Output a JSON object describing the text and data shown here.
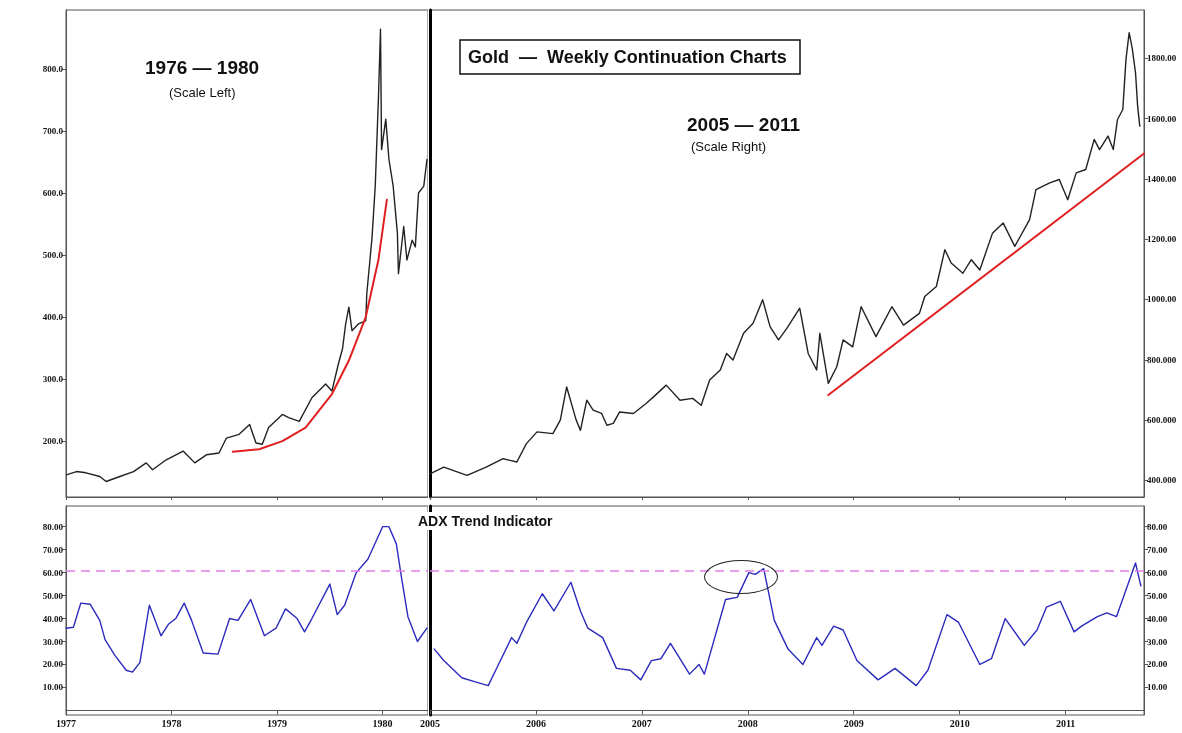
{
  "chart_data": [
    {
      "type": "line",
      "annotations": [
        "1976 — 1980",
        "(Scale Left)"
      ],
      "xlim": [
        1977,
        1980.43
      ],
      "xticks": [
        1977,
        1978,
        1979,
        1980
      ],
      "ylim": [
        110,
        895
      ],
      "yticks": [
        {
          "value": 200,
          "label": "200.0"
        },
        {
          "value": 300,
          "label": "300.0"
        },
        {
          "value": 400,
          "label": "400.0"
        },
        {
          "value": 500,
          "label": "500.0"
        },
        {
          "value": 600,
          "label": "600.0"
        },
        {
          "value": 700,
          "label": "700.0"
        },
        {
          "value": 800,
          "label": "800.0"
        }
      ],
      "tick_labels": "y",
      "marker": "none",
      "series": [
        {
          "color": "#222222",
          "x": [
            1977.01,
            1977.1,
            1977.19,
            1977.32,
            1977.38,
            1977.51,
            1977.64,
            1977.76,
            1977.82,
            1977.95,
            1978.11,
            1978.22,
            1978.33,
            1978.45,
            1978.52,
            1978.64,
            1978.74,
            1978.8,
            1978.86,
            1978.92,
            1979.05,
            1979.11,
            1979.21,
            1979.33,
            1979.46,
            1979.52,
            1979.58,
            1979.62,
            1979.65,
            1979.68,
            1979.71,
            1979.77,
            1979.84,
            1979.85,
            1979.88,
            1979.9,
            1979.93,
            1979.96,
            1979.98,
            1979.99,
            1980.03,
            1980.06,
            1980.1,
            1980.14,
            1980.15,
            1980.2,
            1980.23,
            1980.28,
            1980.31,
            1980.34,
            1980.39,
            1980.42
          ],
          "values": [
            146,
            151,
            149,
            143,
            135,
            143,
            151,
            165,
            154,
            170,
            184,
            165,
            178,
            181,
            205,
            211,
            227,
            197,
            195,
            222,
            243,
            238,
            232,
            270,
            292,
            281,
            324,
            349,
            389,
            416,
            378,
            389,
            394,
            438,
            492,
            529,
            611,
            751,
            864,
            670,
            719,
            654,
            611,
            535,
            470,
            546,
            492,
            524,
            513,
            600,
            611,
            654
          ]
        },
        {
          "type": "line",
          "color": "#e02020",
          "x": [
            1978.58,
            1978.83,
            1979.05,
            1979.27,
            1979.52,
            1979.68,
            1979.84,
            1979.96,
            1980.04
          ],
          "values": [
            183,
            187,
            200,
            222,
            276,
            330,
            400,
            492,
            589
          ]
        }
      ]
    },
    {
      "type": "line",
      "title": "Gold  —  Weekly Continuation Charts",
      "annotations": [
        "2005 — 2011",
        "(Scale Right)"
      ],
      "xlim": [
        2005,
        2011.74
      ],
      "xticks": [
        2005,
        2006,
        2007,
        2008,
        2009,
        2010,
        2011
      ],
      "ylim": [
        345,
        1960
      ],
      "yticks": [
        {
          "value": 400,
          "label": "400.000"
        },
        {
          "value": 600,
          "label": "600.000"
        },
        {
          "value": 800,
          "label": "800.000"
        },
        {
          "value": 1000,
          "label": "1000.00"
        },
        {
          "value": 1200,
          "label": "1200.00"
        },
        {
          "value": 1400,
          "label": "1400.00"
        },
        {
          "value": 1600,
          "label": "1600.00"
        },
        {
          "value": 1800,
          "label": "1800.00"
        }
      ],
      "tick_labels": "y",
      "marker": "none",
      "series": [
        {
          "color": "#222222",
          "x": [
            2005,
            2005.13,
            2005.35,
            2005.53,
            2005.69,
            2005.82,
            2005.91,
            2006.01,
            2006.16,
            2006.23,
            2006.29,
            2006.38,
            2006.42,
            2006.48,
            2006.54,
            2006.62,
            2006.67,
            2006.73,
            2006.79,
            2006.92,
            2007.04,
            2007.11,
            2007.23,
            2007.36,
            2007.48,
            2007.56,
            2007.64,
            2007.74,
            2007.8,
            2007.86,
            2007.96,
            2008.05,
            2008.14,
            2008.21,
            2008.29,
            2008.37,
            2008.49,
            2008.57,
            2008.65,
            2008.68,
            2008.76,
            2008.84,
            2008.9,
            2008.99,
            2009.07,
            2009.21,
            2009.36,
            2009.47,
            2009.62,
            2009.67,
            2009.78,
            2009.86,
            2009.92,
            2010.03,
            2010.11,
            2010.19,
            2010.31,
            2010.41,
            2010.52,
            2010.66,
            2010.72,
            2010.85,
            2010.94,
            2011.02,
            2011.1,
            2011.19,
            2011.27,
            2011.32,
            2011.4,
            2011.45,
            2011.49,
            2011.54,
            2011.57,
            2011.6,
            2011.63,
            2011.66,
            2011.68,
            2011.7
          ],
          "values": [
            422,
            444,
            417,
            444,
            472,
            461,
            522,
            561,
            555,
            600,
            710,
            600,
            566,
            666,
            633,
            622,
            583,
            589,
            627,
            622,
            655,
            677,
            716,
            666,
            672,
            649,
            733,
            766,
            821,
            799,
            888,
            921,
            999,
            910,
            866,
            905,
            971,
            821,
            766,
            888,
            722,
            777,
            866,
            843,
            976,
            877,
            976,
            915,
            954,
            1010,
            1043,
            1165,
            1121,
            1087,
            1132,
            1098,
            1220,
            1254,
            1176,
            1265,
            1364,
            1387,
            1398,
            1331,
            1420,
            1431,
            1531,
            1497,
            1542,
            1497,
            1597,
            1630,
            1797,
            1885,
            1830,
            1752,
            1641,
            1575
          ]
        },
        {
          "type": "line",
          "color": "#e02020",
          "x": [
            2008.76,
            2011.74
          ],
          "values": [
            683,
            1484
          ]
        }
      ]
    },
    {
      "type": "line",
      "xlim": [
        1977,
        1980.43
      ],
      "xticks": [
        1977,
        1978,
        1979,
        1980
      ],
      "ylim": [
        -2,
        89
      ],
      "yticks": [
        {
          "value": 10,
          "label": "10.00"
        },
        {
          "value": 20,
          "label": "20.00"
        },
        {
          "value": 30,
          "label": "30.00"
        },
        {
          "value": 40,
          "label": "40.00"
        },
        {
          "value": 50,
          "label": "50.00"
        },
        {
          "value": 60,
          "label": "60.00"
        },
        {
          "value": 70,
          "label": "70.00"
        },
        {
          "value": 80,
          "label": "80.00"
        }
      ],
      "marker": "none",
      "ref_lines": [
        {
          "axis": "y",
          "value": 61,
          "color": "#e080e8",
          "line_style": "dashed"
        }
      ],
      "series": [
        {
          "color": "#2b2bbd",
          "x": [
            1977,
            1977.07,
            1977.14,
            1977.23,
            1977.32,
            1977.37,
            1977.46,
            1977.57,
            1977.63,
            1977.7,
            1977.79,
            1977.9,
            1977.97,
            1978.04,
            1978.12,
            1978.19,
            1978.3,
            1978.44,
            1978.55,
            1978.63,
            1978.75,
            1978.88,
            1978.99,
            1979.08,
            1979.19,
            1979.26,
            1979.33,
            1979.5,
            1979.57,
            1979.64,
            1979.75,
            1979.86,
            1980,
            1980.06,
            1980.13,
            1980.18,
            1980.24,
            1980.33,
            1980.42
          ],
          "values": [
            35.8,
            36.2,
            46.7,
            46.2,
            39.2,
            30.8,
            24.2,
            17.5,
            16.7,
            20.8,
            45.8,
            32.5,
            37.5,
            40,
            46.7,
            39.2,
            25,
            24.5,
            40,
            39.2,
            48.3,
            32.5,
            35.8,
            44.2,
            40,
            34.2,
            40,
            55,
            41.7,
            45.8,
            60,
            65.8,
            80,
            80,
            72.5,
            57.5,
            40.8,
            30,
            35.8
          ]
        }
      ]
    },
    {
      "type": "line",
      "annotations": [
        "ADX Trend Indicator"
      ],
      "xlim": [
        2005,
        2011.74
      ],
      "xticks": [
        2005,
        2006,
        2007,
        2008,
        2009,
        2010,
        2011
      ],
      "ylim": [
        -2,
        89
      ],
      "yticks": [
        {
          "value": 10,
          "label": "10.00"
        },
        {
          "value": 20,
          "label": "20.00"
        },
        {
          "value": 30,
          "label": "30.00"
        },
        {
          "value": 40,
          "label": "40.00"
        },
        {
          "value": 50,
          "label": "50.00"
        },
        {
          "value": 60,
          "label": "60.00"
        },
        {
          "value": 70,
          "label": "70.00"
        },
        {
          "value": 80,
          "label": "80.00"
        }
      ],
      "marker": "none",
      "ref_lines": [
        {
          "axis": "y",
          "value": 61,
          "color": "#e080e8",
          "line_style": "dashed"
        }
      ],
      "series": [
        {
          "color": "#2b2bbd",
          "x": [
            2005.04,
            2005.13,
            2005.3,
            2005.42,
            2005.55,
            2005.62,
            2005.77,
            2005.82,
            2005.91,
            2006.06,
            2006.17,
            2006.33,
            2006.42,
            2006.49,
            2006.63,
            2006.76,
            2006.89,
            2006.99,
            2007.09,
            2007.18,
            2007.27,
            2007.45,
            2007.54,
            2007.59,
            2007.79,
            2007.9,
            2008.01,
            2008.07,
            2008.15,
            2008.25,
            2008.38,
            2008.52,
            2008.65,
            2008.7,
            2008.81,
            2008.9,
            2009.03,
            2009.23,
            2009.39,
            2009.59,
            2009.7,
            2009.88,
            2009.99,
            2010.19,
            2010.3,
            2010.43,
            2010.61,
            2010.73,
            2010.82,
            2010.95,
            2011.08,
            2011.15,
            2011.3,
            2011.39,
            2011.48,
            2011.66,
            2011.71
          ],
          "values": [
            26.7,
            21.7,
            14.2,
            12.5,
            10.8,
            17.5,
            31.7,
            29.2,
            38.3,
            50.8,
            43.3,
            55.8,
            43.3,
            35.8,
            31.7,
            18.3,
            17.5,
            13.3,
            21.7,
            22.5,
            29.2,
            15.8,
            20,
            15.8,
            48.3,
            49.2,
            60,
            59.2,
            61.7,
            39.2,
            26.7,
            20,
            31.7,
            28.3,
            36.7,
            35,
            21.7,
            13.3,
            18.3,
            10.8,
            17.5,
            41.7,
            38.3,
            20,
            22.5,
            40,
            28.3,
            35,
            45,
            47.5,
            34.2,
            36.7,
            40.8,
            42.5,
            40.8,
            64.2,
            54.2
          ]
        }
      ]
    }
  ]
}
